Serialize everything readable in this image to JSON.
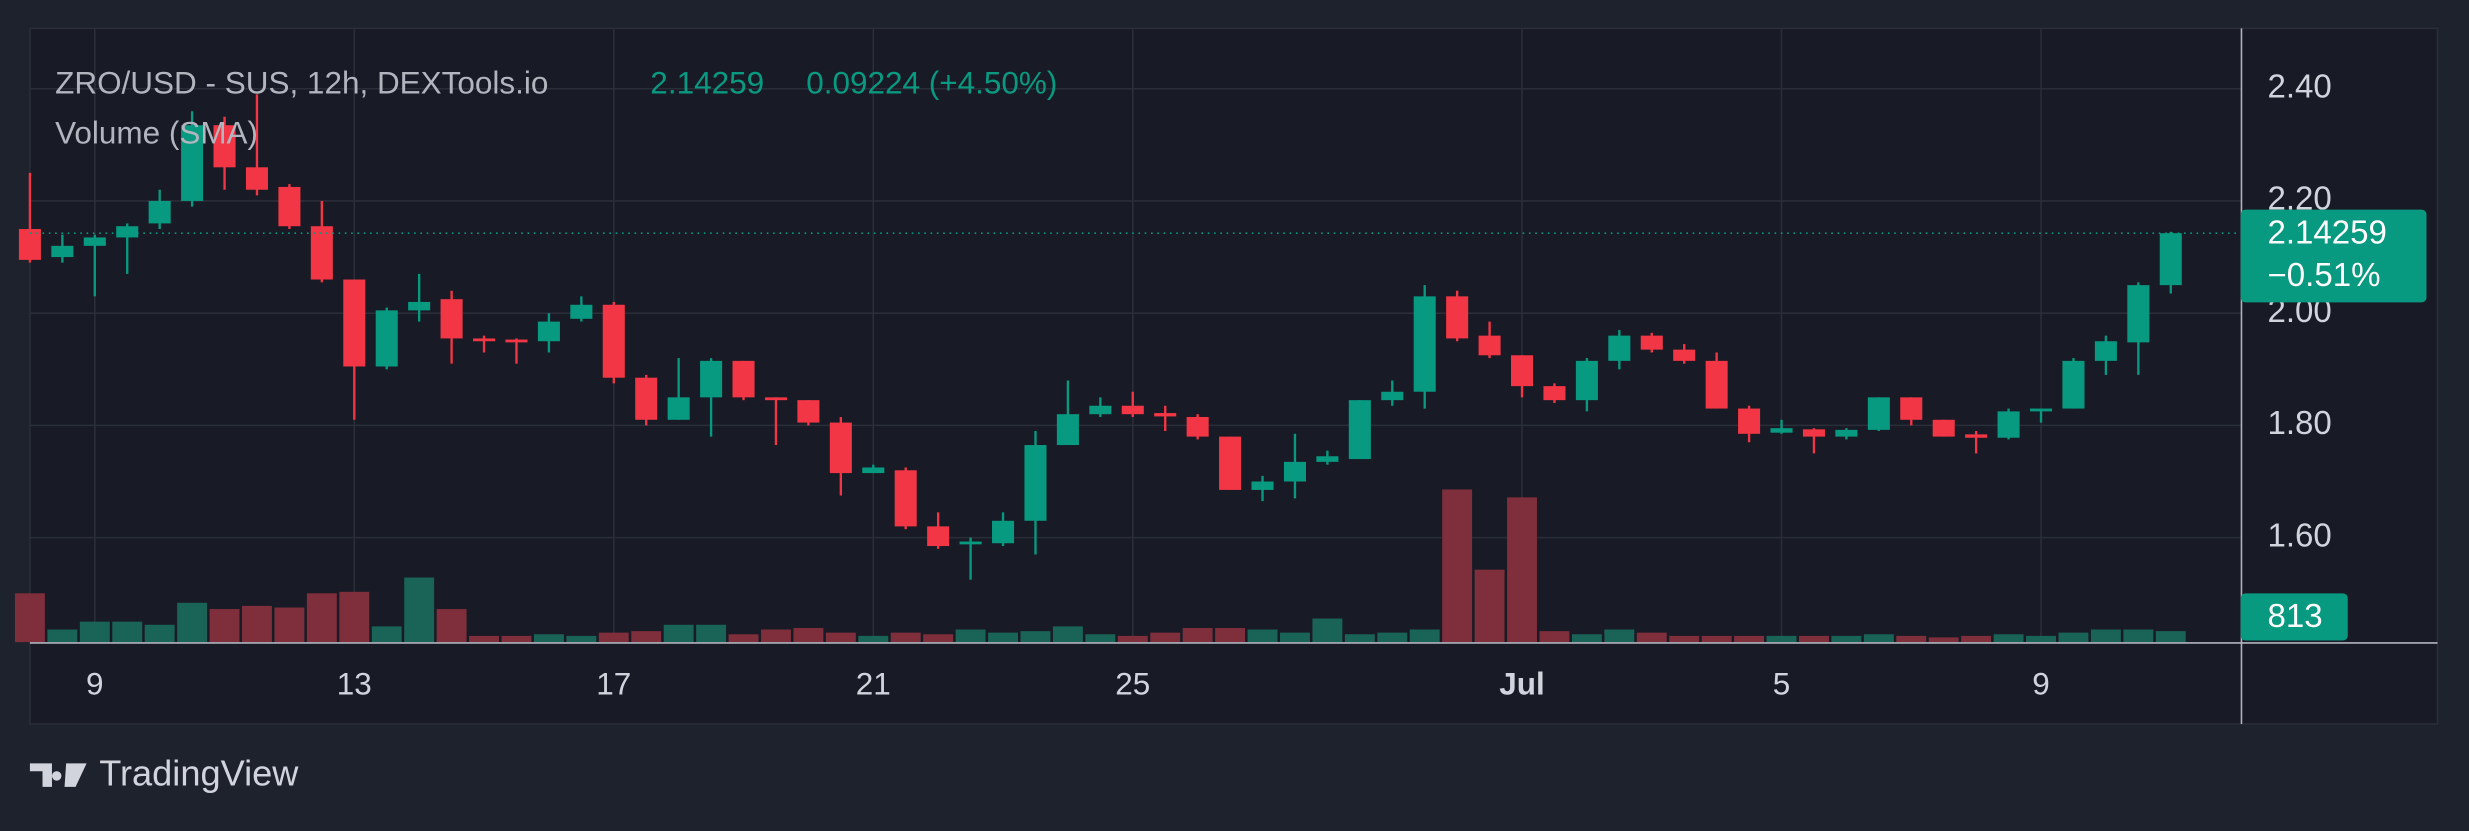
{
  "chart_data": {
    "type": "candlestick",
    "title": "ZRO/USD - SUS, 12h, DEXTools.io",
    "last_price": 2.14259,
    "change_text": "0.09224 (+4.50%)",
    "last_change_text": "−0.51%",
    "branding": "TradingView",
    "categories": [
      null,
      null,
      "9",
      null,
      null,
      null,
      null,
      null,
      null,
      null,
      "13",
      null,
      null,
      null,
      null,
      null,
      null,
      null,
      "17",
      null,
      null,
      null,
      null,
      null,
      null,
      null,
      "21",
      null,
      null,
      null,
      null,
      null,
      null,
      null,
      "25",
      null,
      null,
      null,
      null,
      null,
      null,
      null,
      null,
      null,
      null,
      null,
      "Jul",
      null,
      null,
      null,
      null,
      null,
      null,
      null,
      "5",
      null,
      null,
      null,
      null,
      null,
      null,
      null,
      "9",
      null,
      null,
      null,
      null
    ],
    "open": [
      2.15,
      2.1,
      2.12,
      2.135,
      2.16,
      2.2,
      2.335,
      2.26,
      2.225,
      2.155,
      2.06,
      1.905,
      2.005,
      2.025,
      1.955,
      1.953,
      1.95,
      1.99,
      2.015,
      1.885,
      1.81,
      1.85,
      1.915,
      1.85,
      1.845,
      1.805,
      1.715,
      1.72,
      1.62,
      1.588,
      1.59,
      1.63,
      1.765,
      1.82,
      1.835,
      1.822,
      1.815,
      1.78,
      1.685,
      1.7,
      1.735,
      1.74,
      1.845,
      1.86,
      2.03,
      1.96,
      1.925,
      1.87,
      1.845,
      1.915,
      1.96,
      1.935,
      1.915,
      1.83,
      1.787,
      1.793,
      1.78,
      1.792,
      1.85,
      1.81,
      1.784,
      1.778,
      1.825,
      1.83,
      1.915,
      1.948,
      2.05
    ],
    "high": [
      2.25,
      2.14,
      2.14,
      2.16,
      2.22,
      2.36,
      2.35,
      2.39,
      2.23,
      2.2,
      2.06,
      2.01,
      2.07,
      2.04,
      1.96,
      1.955,
      2.0,
      2.03,
      2.02,
      1.89,
      1.92,
      1.92,
      1.915,
      1.85,
      1.845,
      1.815,
      1.73,
      1.725,
      1.645,
      1.6,
      1.645,
      1.79,
      1.88,
      1.85,
      1.86,
      1.835,
      1.82,
      1.78,
      1.71,
      1.785,
      1.755,
      1.845,
      1.88,
      2.05,
      2.04,
      1.985,
      1.925,
      1.875,
      1.92,
      1.97,
      1.965,
      1.945,
      1.93,
      1.835,
      1.81,
      1.795,
      1.795,
      1.85,
      1.85,
      1.81,
      1.79,
      1.83,
      1.83,
      1.92,
      1.96,
      2.055,
      2.145
    ],
    "low": [
      2.09,
      2.09,
      2.03,
      2.07,
      2.15,
      2.19,
      2.22,
      2.21,
      2.15,
      2.055,
      1.81,
      1.9,
      1.985,
      1.91,
      1.93,
      1.91,
      1.93,
      1.985,
      1.875,
      1.8,
      1.81,
      1.78,
      1.845,
      1.765,
      1.8,
      1.675,
      1.715,
      1.615,
      1.58,
      1.525,
      1.585,
      1.57,
      1.765,
      1.815,
      1.815,
      1.79,
      1.775,
      1.685,
      1.665,
      1.67,
      1.73,
      1.74,
      1.835,
      1.83,
      1.95,
      1.92,
      1.85,
      1.84,
      1.825,
      1.9,
      1.93,
      1.91,
      1.83,
      1.77,
      1.785,
      1.75,
      1.775,
      1.79,
      1.8,
      1.78,
      1.75,
      1.775,
      1.805,
      1.83,
      1.89,
      1.89,
      2.035
    ],
    "close": [
      2.095,
      2.12,
      2.135,
      2.155,
      2.2,
      2.335,
      2.26,
      2.22,
      2.155,
      2.06,
      1.905,
      2.005,
      2.02,
      1.955,
      1.95,
      1.948,
      1.985,
      2.015,
      1.885,
      1.81,
      1.85,
      1.915,
      1.85,
      1.845,
      1.805,
      1.715,
      1.725,
      1.62,
      1.585,
      1.593,
      1.63,
      1.765,
      1.82,
      1.835,
      1.82,
      1.816,
      1.78,
      1.685,
      1.7,
      1.735,
      1.745,
      1.845,
      1.86,
      2.03,
      1.955,
      1.925,
      1.87,
      1.845,
      1.915,
      1.96,
      1.935,
      1.915,
      1.83,
      1.785,
      1.795,
      1.78,
      1.792,
      1.85,
      1.81,
      1.78,
      1.778,
      1.825,
      1.83,
      1.915,
      1.95,
      2.05,
      2.14259
    ],
    "volume": {
      "name": "Volume (SMA)",
      "values": [
        3600,
        930,
        1510,
        1510,
        1280,
        2900,
        2440,
        2670,
        2550,
        3600,
        3710,
        1160,
        4760,
        2440,
        460,
        460,
        580,
        460,
        700,
        810,
        1280,
        1280,
        580,
        930,
        1040,
        700,
        460,
        700,
        580,
        930,
        700,
        810,
        1160,
        580,
        460,
        700,
        1040,
        1040,
        930,
        700,
        1740,
        580,
        700,
        930,
        11250,
        5340,
        10670,
        810,
        580,
        930,
        700,
        460,
        460,
        460,
        460,
        460,
        460,
        580,
        460,
        350,
        460,
        580,
        460,
        700,
        930,
        930,
        813
      ]
    },
    "up_color": "#089981",
    "down_color": "#f23645",
    "volume_up_color": "#1a6357",
    "volume_down_color": "#7f2e3b",
    "ylim": [
      1.4137,
      2.5077
    ],
    "yticks": [
      {
        "value": 2.4,
        "label": "2.40"
      },
      {
        "value": 2.2,
        "label": "2.20"
      },
      {
        "value": 2.0,
        "label": "2.00"
      },
      {
        "value": 1.8,
        "label": "1.80"
      },
      {
        "value": 1.6,
        "label": "1.60"
      }
    ],
    "grid": true
  }
}
